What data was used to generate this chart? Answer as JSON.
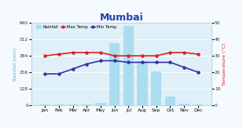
{
  "title": "Mumbai",
  "title_color": "#2244aa",
  "title_fontsize": 9,
  "months": [
    "Jan",
    "Feb",
    "Mar",
    "Apr",
    "May",
    "Jun",
    "Jul",
    "Aug",
    "Sep",
    "Oct",
    "Nov",
    "Dec"
  ],
  "rainfall_mm": [
    3,
    3,
    3,
    1,
    18,
    485,
    617,
    340,
    264,
    64,
    13,
    5
  ],
  "max_temp_c": [
    30,
    31,
    32,
    32,
    32,
    30,
    30,
    30,
    30,
    32,
    32,
    31
  ],
  "min_temp_c": [
    19,
    19,
    22,
    25,
    27,
    27,
    26,
    26,
    26,
    26,
    23,
    20
  ],
  "rainfall_color": "#aaddf0",
  "max_temp_color": "#dd2222",
  "min_temp_color": "#3333aa",
  "left_ylabel": "Rainfall (mm)",
  "left_ylabel_color": "#55aacc",
  "right_ylabel": "Temperature (°C)",
  "right_ylabel_color": "#dd2222",
  "left_ylim": [
    0,
    640
  ],
  "right_ylim": [
    0,
    50
  ],
  "left_yticks": [
    0,
    128,
    256,
    384,
    512,
    640
  ],
  "right_yticks": [
    0,
    10,
    20,
    30,
    40,
    50
  ],
  "bg_color": "#f5faff",
  "plot_bg_color": "#dff0f8",
  "grid_color": "#ffffff"
}
